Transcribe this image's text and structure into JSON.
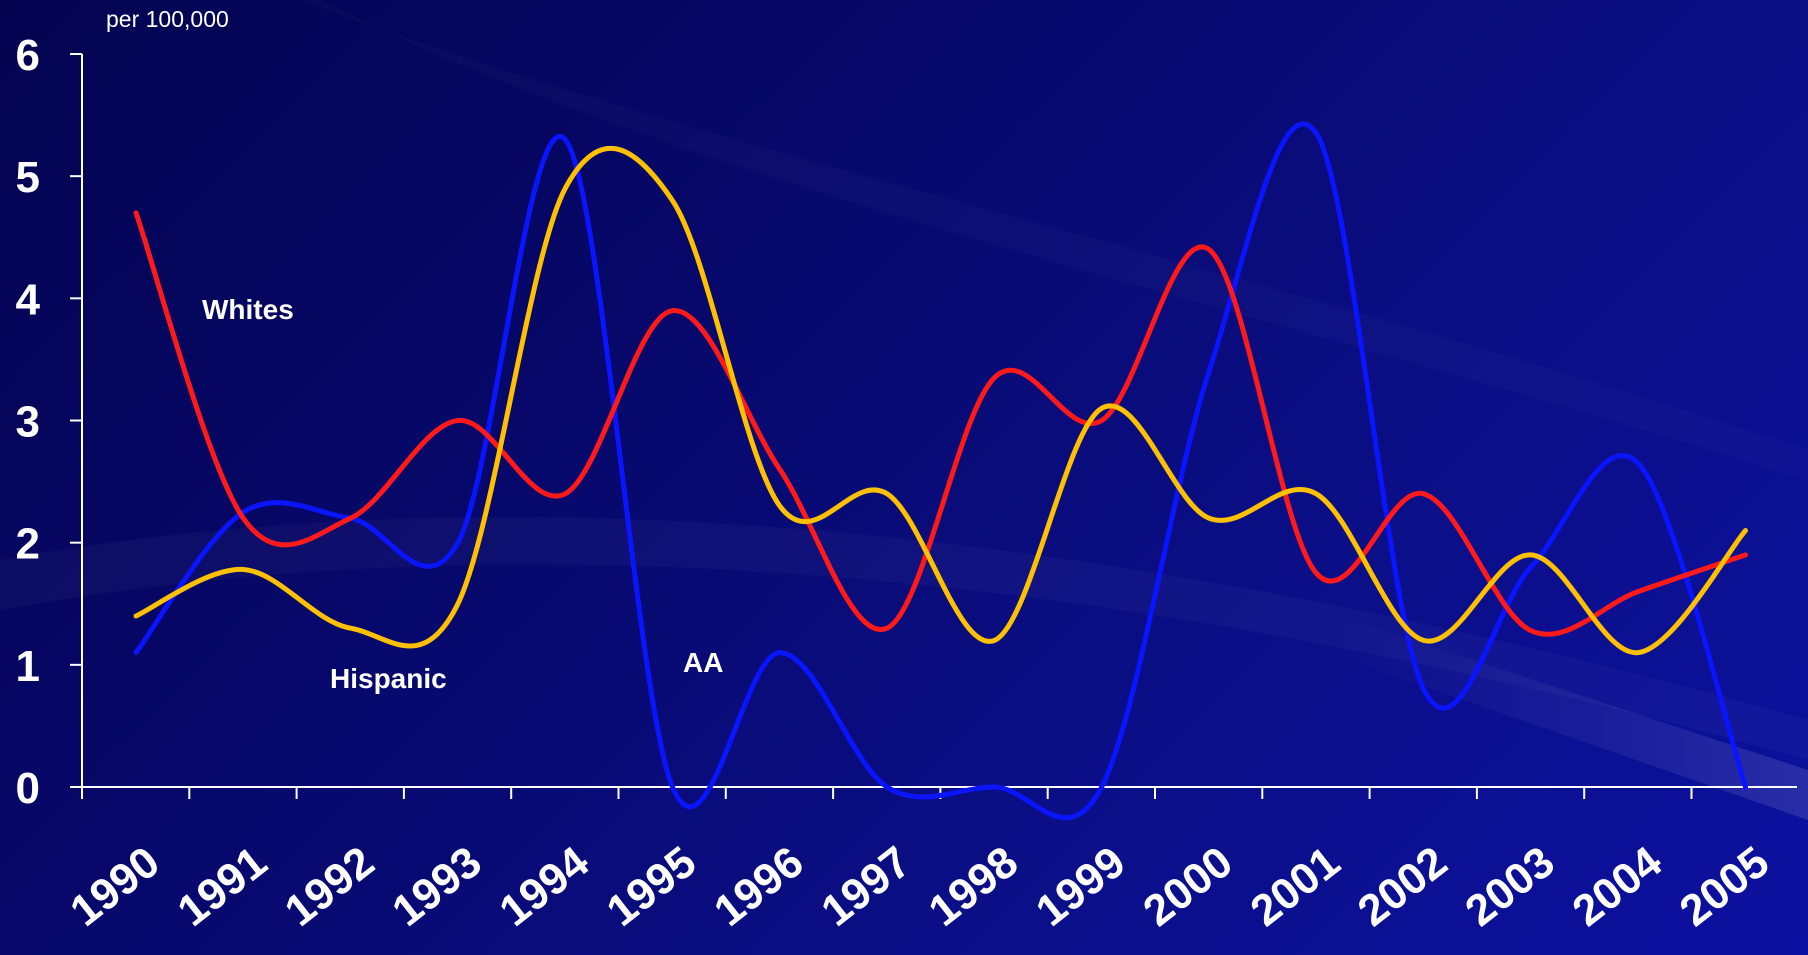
{
  "chart_data": {
    "type": "line",
    "ylabel": "per 100,000",
    "ylim": [
      0,
      6
    ],
    "yticks": [
      0,
      1,
      2,
      3,
      4,
      5,
      6
    ],
    "categories": [
      "1990",
      "1991",
      "1992",
      "1993",
      "1994",
      "1995",
      "1996",
      "1997",
      "1998",
      "1999",
      "2000",
      "2001",
      "2002",
      "2003",
      "2004",
      "2005"
    ],
    "grid": false,
    "series": [
      {
        "name": "Whites",
        "color": "#ff1a1a",
        "values": [
          4.7,
          2.2,
          2.2,
          3.0,
          2.4,
          3.9,
          2.6,
          1.3,
          3.35,
          3.0,
          4.4,
          1.75,
          2.4,
          1.28,
          1.6,
          1.9
        ]
      },
      {
        "name": "Hispanic",
        "color": "#ffc000",
        "values": [
          1.4,
          1.78,
          1.3,
          1.5,
          4.9,
          4.8,
          2.3,
          2.4,
          1.2,
          3.1,
          2.2,
          2.4,
          1.2,
          1.9,
          1.1,
          2.1
        ]
      },
      {
        "name": "AA",
        "color": "#0a14ff",
        "values": [
          1.1,
          2.25,
          2.2,
          2.0,
          5.3,
          0.0,
          1.1,
          0.0,
          0.0,
          0.0,
          3.4,
          5.35,
          0.8,
          1.8,
          2.65,
          0.0
        ]
      }
    ]
  }
}
